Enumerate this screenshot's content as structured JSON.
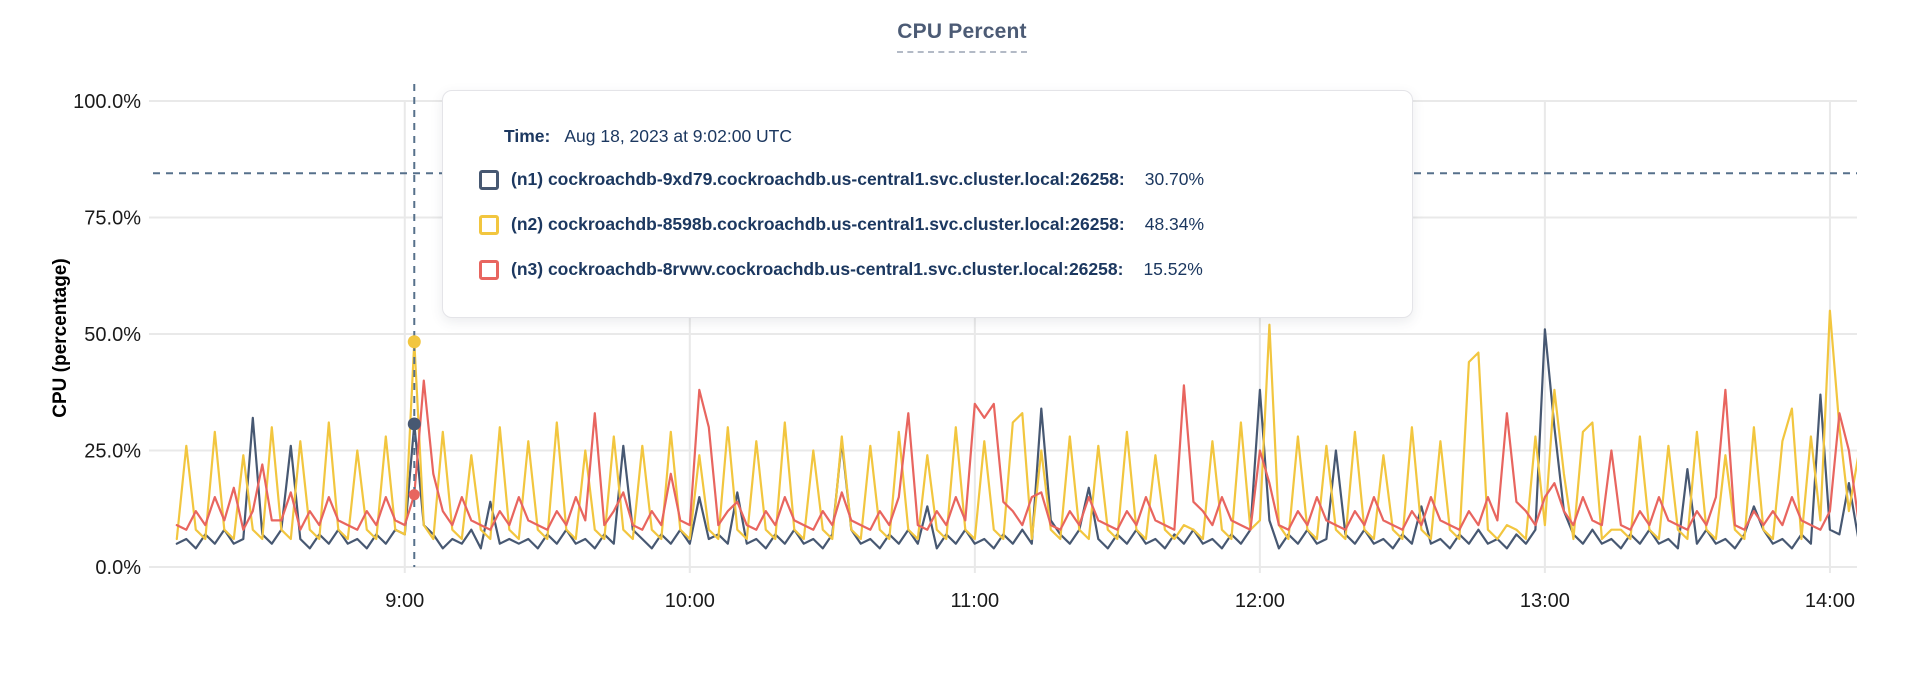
{
  "tooltip": {
    "time_label": "Time:",
    "time_value": "Aug 18, 2023 at 9:02:00 UTC",
    "rows": [
      {
        "label": "(n1) cockroachdb-9xd79.cockroachdb.us-central1.svc.cluster.local:26258:",
        "value": "30.70%",
        "color": "#475872"
      },
      {
        "label": "(n2) cockroachdb-8598b.cockroachdb.us-central1.svc.cluster.local:26258:",
        "value": "48.34%",
        "color": "#f2c63f"
      },
      {
        "label": "(n3) cockroachdb-8rvwv.cockroachdb.us-central1.svc.cluster.local:26258:",
        "value": "15.52%",
        "color": "#e8655f"
      }
    ]
  },
  "colors": {
    "grid": "#e9e9e9",
    "dashed_guide": "#56708b",
    "axis_text": "#1a1a1a",
    "title": "#4c5b75",
    "tooltip_text": "#1c3860"
  },
  "chart_data": {
    "type": "line",
    "title": "CPU Percent",
    "ylabel": "CPU (percentage)",
    "ylim": [
      0,
      100
    ],
    "grid": true,
    "legend_position": "tooltip-overlay",
    "y_axis": {
      "ticks": [
        {
          "label": "100.0%",
          "value": 100
        },
        {
          "label": "75.0%",
          "value": 75
        },
        {
          "label": "50.0%",
          "value": 50
        },
        {
          "label": "25.0%",
          "value": 25
        },
        {
          "label": "0.0%",
          "value": 0
        }
      ]
    },
    "x_axis": {
      "view_start_min": 487,
      "view_end_min": 846,
      "data_start_min": 492,
      "step_min": 2,
      "ticks": [
        {
          "label": "9:00",
          "min": 540
        },
        {
          "label": "10:00",
          "min": 600
        },
        {
          "label": "11:00",
          "min": 660
        },
        {
          "label": "12:00",
          "min": 720
        },
        {
          "label": "13:00",
          "min": 780
        },
        {
          "label": "14:00",
          "min": 840
        }
      ]
    },
    "reference_line_pct": 84.5,
    "hover": {
      "time_min": 542,
      "time_label": "Aug 18, 2023 at 9:02:00 UTC",
      "values": [
        30.7,
        48.34,
        15.52
      ]
    },
    "series": [
      {
        "name": "(n1) cockroachdb-9xd79.cockroachdb.us-central1.svc.cluster.local:26258",
        "color": "#475872",
        "values": [
          5,
          6,
          4,
          7,
          5,
          8,
          5,
          6,
          32,
          7,
          5,
          8,
          26,
          6,
          4,
          7,
          5,
          8,
          5,
          6,
          4,
          7,
          5,
          8,
          7,
          30.7,
          9,
          7,
          4,
          6,
          5,
          8,
          4,
          14,
          5,
          6,
          5,
          6,
          4,
          7,
          5,
          8,
          5,
          6,
          4,
          7,
          5,
          26,
          8,
          6,
          4,
          7,
          5,
          8,
          5,
          15,
          6,
          7,
          5,
          16,
          5,
          6,
          4,
          7,
          5,
          8,
          5,
          6,
          4,
          7,
          27,
          8,
          5,
          6,
          4,
          7,
          5,
          8,
          5,
          13,
          4,
          7,
          5,
          8,
          5,
          6,
          4,
          7,
          5,
          8,
          5,
          34,
          10,
          7,
          5,
          8,
          17,
          6,
          4,
          7,
          5,
          8,
          5,
          6,
          4,
          7,
          5,
          8,
          5,
          6,
          4,
          7,
          5,
          8,
          38,
          10,
          4,
          7,
          5,
          8,
          5,
          6,
          25,
          7,
          5,
          8,
          5,
          6,
          4,
          7,
          5,
          13,
          5,
          6,
          4,
          7,
          5,
          8,
          5,
          6,
          4,
          7,
          5,
          8,
          51,
          30,
          12,
          7,
          5,
          8,
          5,
          6,
          4,
          7,
          5,
          8,
          5,
          6,
          4,
          21,
          5,
          8,
          5,
          6,
          4,
          7,
          13,
          8,
          5,
          6,
          4,
          7,
          5,
          37,
          8,
          7,
          18,
          6
        ]
      },
      {
        "name": "(n2) cockroachdb-8598b.cockroachdb.us-central1.svc.cluster.local:26258",
        "color": "#f2c63f",
        "values": [
          6,
          26,
          8,
          6,
          29,
          8,
          6,
          24,
          8,
          6,
          30,
          8,
          6,
          27,
          8,
          6,
          31,
          8,
          6,
          25,
          8,
          6,
          28,
          8,
          7,
          48.34,
          9,
          6,
          29,
          8,
          6,
          24,
          8,
          6,
          30,
          8,
          6,
          27,
          8,
          6,
          31,
          8,
          6,
          25,
          8,
          6,
          28,
          8,
          6,
          26,
          8,
          6,
          29,
          8,
          6,
          24,
          8,
          6,
          30,
          8,
          6,
          27,
          8,
          6,
          31,
          8,
          6,
          25,
          8,
          6,
          28,
          8,
          6,
          26,
          8,
          6,
          29,
          8,
          6,
          24,
          8,
          6,
          30,
          8,
          6,
          27,
          8,
          6,
          31,
          33,
          6,
          25,
          8,
          6,
          28,
          8,
          6,
          26,
          8,
          6,
          29,
          8,
          6,
          24,
          8,
          6,
          9,
          8,
          6,
          27,
          8,
          6,
          31,
          8,
          10,
          52,
          9,
          6,
          28,
          8,
          6,
          26,
          8,
          6,
          29,
          8,
          6,
          24,
          8,
          6,
          30,
          8,
          6,
          27,
          8,
          6,
          44,
          46,
          8,
          6,
          9,
          8,
          6,
          28,
          9,
          38,
          20,
          6,
          29,
          31,
          6,
          8,
          8,
          6,
          28,
          8,
          6,
          26,
          8,
          6,
          29,
          8,
          6,
          24,
          8,
          6,
          30,
          8,
          6,
          27,
          34,
          6,
          28,
          10,
          55,
          30,
          12,
          24
        ]
      },
      {
        "name": "(n3) cockroachdb-8rvwv.cockroachdb.us-central1.svc.cluster.local:26258",
        "color": "#e8655f",
        "values": [
          9,
          8,
          12,
          9,
          15,
          10,
          17,
          8,
          12,
          22,
          10,
          10,
          16,
          8,
          12,
          9,
          15,
          10,
          9,
          8,
          12,
          9,
          15,
          10,
          9,
          15.52,
          40,
          20,
          12,
          9,
          15,
          10,
          9,
          8,
          12,
          9,
          15,
          10,
          9,
          8,
          12,
          9,
          15,
          10,
          33,
          9,
          12,
          16,
          9,
          8,
          12,
          9,
          20,
          10,
          9,
          38,
          30,
          9,
          12,
          14,
          9,
          8,
          12,
          9,
          15,
          10,
          9,
          8,
          12,
          9,
          16,
          10,
          9,
          8,
          12,
          9,
          15,
          33,
          9,
          8,
          12,
          9,
          15,
          10,
          35,
          32,
          35,
          14,
          12,
          9,
          15,
          16,
          9,
          8,
          12,
          9,
          15,
          10,
          9,
          8,
          12,
          9,
          15,
          10,
          9,
          8,
          39,
          14,
          12,
          9,
          15,
          10,
          9,
          8,
          25,
          18,
          9,
          8,
          12,
          9,
          15,
          10,
          9,
          8,
          12,
          9,
          15,
          10,
          9,
          8,
          12,
          9,
          15,
          10,
          9,
          8,
          12,
          9,
          15,
          10,
          33,
          14,
          12,
          9,
          15,
          18,
          12,
          9,
          15,
          10,
          9,
          25,
          9,
          8,
          12,
          9,
          15,
          10,
          9,
          8,
          12,
          9,
          15,
          38,
          9,
          8,
          12,
          9,
          12,
          9,
          15,
          10,
          9,
          8,
          12,
          33,
          25,
          10
        ]
      }
    ]
  }
}
